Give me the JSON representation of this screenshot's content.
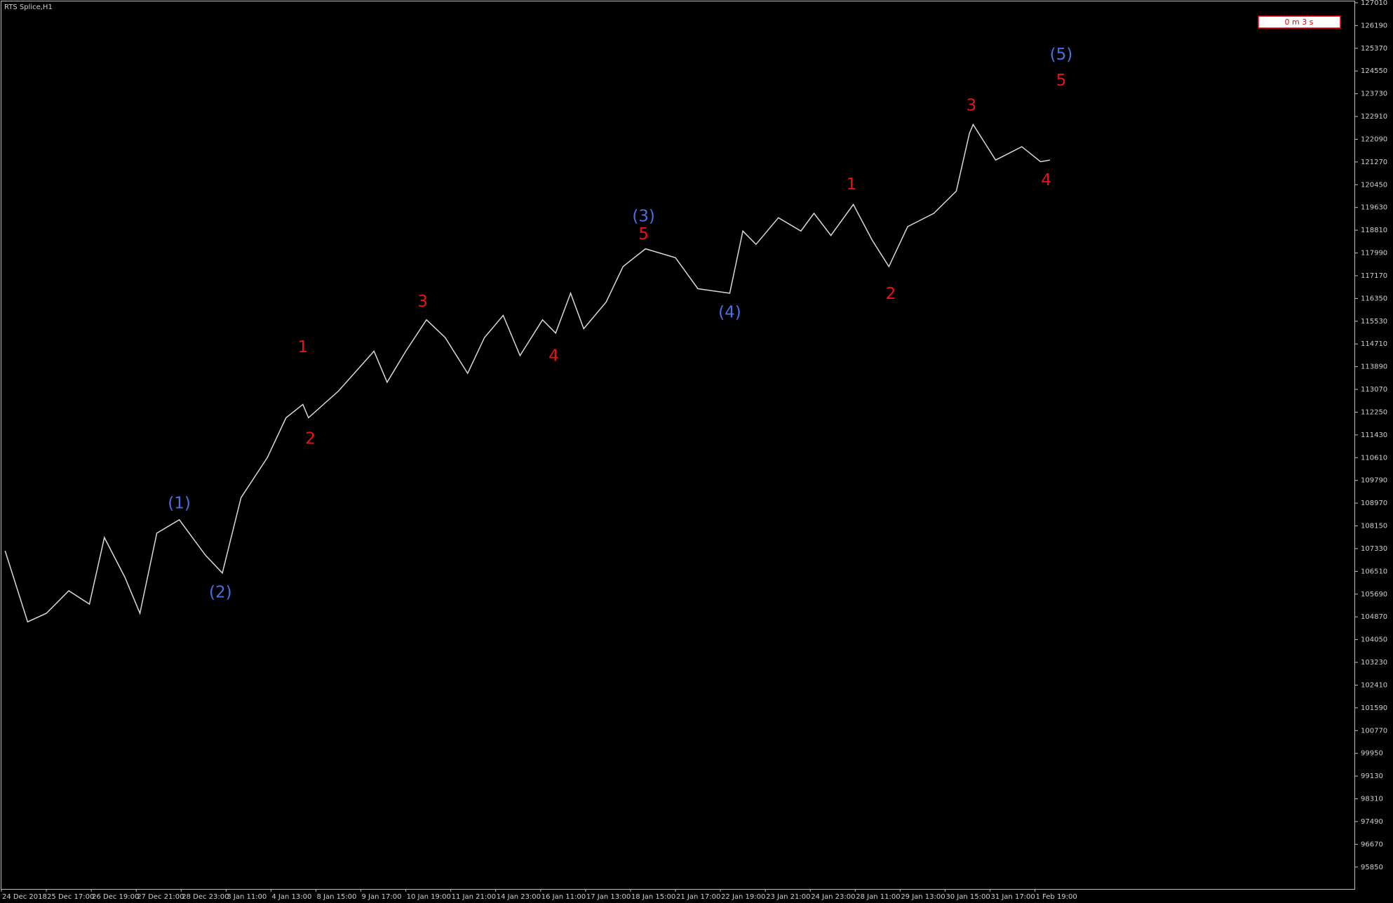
{
  "chart_data": {
    "type": "line",
    "title": "RTS Splice,H1",
    "timer": "0 m 3 s",
    "color": "#d8d8d8",
    "x": [
      2,
      14,
      24,
      36,
      47,
      55,
      66,
      74,
      83,
      95,
      109,
      118,
      128,
      142,
      152,
      161,
      164,
      180,
      199,
      206,
      216,
      227,
      237,
      249,
      258,
      268,
      277,
      289,
      296,
      304,
      311,
      323,
      332,
      344,
      360,
      372,
      389,
      396,
      403,
      415,
      427,
      434,
      443,
      455,
      465,
      474,
      484,
      498,
      510,
      517,
      519,
      531,
      545,
      555,
      560
    ],
    "values": [
      107250,
      104690,
      105000,
      105810,
      105330,
      107730,
      106290,
      105000,
      107890,
      108370,
      107090,
      106450,
      109170,
      110610,
      112050,
      112530,
      112050,
      113010,
      114450,
      113330,
      114450,
      115580,
      114940,
      113650,
      114940,
      115740,
      114290,
      115580,
      115100,
      116540,
      115260,
      116220,
      117500,
      118140,
      117820,
      116700,
      116540,
      118780,
      118300,
      119260,
      118780,
      119420,
      118620,
      119740,
      118460,
      117500,
      118940,
      119420,
      120220,
      122300,
      122620,
      121340,
      121820,
      121280,
      121340
    ],
    "xlim": [
      0,
      723
    ],
    "ylim": [
      95060,
      127110
    ],
    "xticks": [
      {
        "value": 0,
        "label": "24 Dec 2018"
      },
      {
        "value": 24,
        "label": "25 Dec 17:00"
      },
      {
        "value": 48,
        "label": "26 Dec 19:00"
      },
      {
        "value": 72,
        "label": "27 Dec 21:00"
      },
      {
        "value": 96,
        "label": "28 Dec 23:00"
      },
      {
        "value": 120,
        "label": "3 Jan 11:00"
      },
      {
        "value": 144,
        "label": "4 Jan 13:00"
      },
      {
        "value": 168,
        "label": "8 Jan 15:00"
      },
      {
        "value": 192,
        "label": "9 Jan 17:00"
      },
      {
        "value": 216,
        "label": "10 Jan 19:00"
      },
      {
        "value": 240,
        "label": "11 Jan 21:00"
      },
      {
        "value": 264,
        "label": "14 Jan 23:00"
      },
      {
        "value": 288,
        "label": "16 Jan 11:00"
      },
      {
        "value": 312,
        "label": "17 Jan 13:00"
      },
      {
        "value": 336,
        "label": "18 Jan 15:00"
      },
      {
        "value": 360,
        "label": "21 Jan 17:00"
      },
      {
        "value": 384,
        "label": "22 Jan 19:00"
      },
      {
        "value": 408,
        "label": "23 Jan 21:00"
      },
      {
        "value": 432,
        "label": "24 Jan 23:00"
      },
      {
        "value": 456,
        "label": "28 Jan 11:00"
      },
      {
        "value": 480,
        "label": "29 Jan 13:00"
      },
      {
        "value": 504,
        "label": "30 Jan 15:00"
      },
      {
        "value": 528,
        "label": "31 Jan 17:00"
      },
      {
        "value": 552,
        "label": "1 Feb 19:00"
      }
    ],
    "yticks": [
      127010,
      126190,
      125370,
      124550,
      123730,
      122910,
      122090,
      121270,
      120450,
      119630,
      118810,
      117990,
      117170,
      116350,
      115530,
      114710,
      113890,
      113070,
      112250,
      111430,
      110610,
      109790,
      108970,
      108150,
      107330,
      106510,
      105690,
      104870,
      104050,
      103230,
      102410,
      101590,
      100770,
      99950,
      99130,
      98310,
      97490,
      96670,
      95850
    ],
    "annotations": [
      {
        "text": "(1)",
        "x": 95,
        "y": 108950,
        "color": "#4a6fe0"
      },
      {
        "text": "(2)",
        "x": 117,
        "y": 105740,
        "color": "#4a6fe0"
      },
      {
        "text": "1",
        "x": 161,
        "y": 114580,
        "color": "#ee1111"
      },
      {
        "text": "2",
        "x": 165,
        "y": 111280,
        "color": "#ee1111"
      },
      {
        "text": "3",
        "x": 225,
        "y": 116220,
        "color": "#ee1111"
      },
      {
        "text": "4",
        "x": 295,
        "y": 114260,
        "color": "#ee1111"
      },
      {
        "text": "(3)",
        "x": 343,
        "y": 119290,
        "color": "#4a6fe0"
      },
      {
        "text": "5",
        "x": 343,
        "y": 118650,
        "color": "#ee1111"
      },
      {
        "text": "(4)",
        "x": 389,
        "y": 115830,
        "color": "#4a6fe0"
      },
      {
        "text": "1",
        "x": 454,
        "y": 120440,
        "color": "#ee1111"
      },
      {
        "text": "2",
        "x": 475,
        "y": 116500,
        "color": "#ee1111"
      },
      {
        "text": "3",
        "x": 518,
        "y": 123290,
        "color": "#ee1111"
      },
      {
        "text": "4",
        "x": 558,
        "y": 120600,
        "color": "#ee1111"
      },
      {
        "text": "(5)",
        "x": 566,
        "y": 125120,
        "color": "#4a6fe0"
      },
      {
        "text": "5",
        "x": 566,
        "y": 124190,
        "color": "#ee1111"
      }
    ]
  }
}
